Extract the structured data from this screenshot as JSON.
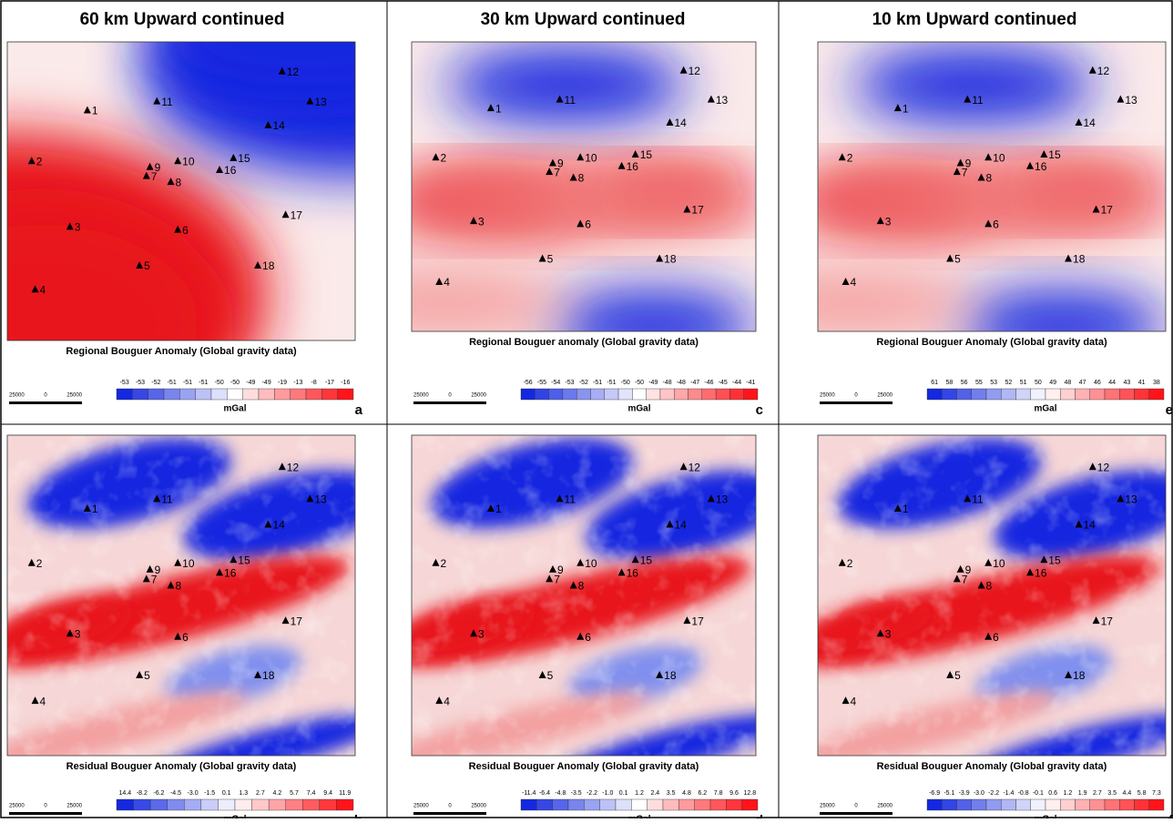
{
  "titles": [
    "60 km Upward continued",
    "30 km Upward continued",
    "10 km Upward continued"
  ],
  "stations": [
    "1",
    "2",
    "3",
    "4",
    "5",
    "6",
    "7",
    "8",
    "9",
    "10",
    "11",
    "12",
    "13",
    "14",
    "15",
    "16",
    "17",
    "18"
  ],
  "panels": [
    {
      "letter": "a",
      "caption": "Regional Bouguer Anomaly (Global gravity data)",
      "unit": "mGal",
      "scale": [
        "25000",
        "0",
        "25000"
      ],
      "colorbar": [
        "-53",
        "-53",
        "-52",
        "-51",
        "-51",
        "-51",
        "-50",
        "-50",
        "-49",
        "-49",
        "-19",
        "-13",
        "-8",
        "-17",
        "-16"
      ]
    },
    {
      "letter": "b",
      "caption": "Residual Bouguer Anomaly (Global gravity data)",
      "unit": "mGal",
      "scale": [
        "25000",
        "0",
        "25000"
      ],
      "colorbar": [
        "14.4",
        "-8.2",
        "-6.2",
        "-4.5",
        "-3.0",
        "-1.5",
        "0.1",
        "1.3",
        "2.7",
        "4.2",
        "5.7",
        "7.4",
        "9.4",
        "11.9"
      ]
    },
    {
      "letter": "c",
      "caption": "Regional Bouguer anomaly (Global gravity data)",
      "unit": "mGal",
      "scale": [
        "25000",
        "0",
        "25000"
      ],
      "colorbar": [
        "-56",
        "-55",
        "-54",
        "-53",
        "-52",
        "-51",
        "-51",
        "-50",
        "-50",
        "-49",
        "-48",
        "-48",
        "-47",
        "-46",
        "-45",
        "-44",
        "-41"
      ]
    },
    {
      "letter": "d",
      "caption": "Residual Bouguer Anomaly (Global gravity data)",
      "unit": "mGal",
      "scale": [
        "25000",
        "0",
        "25000"
      ],
      "colorbar": [
        "-11.4",
        "-6.4",
        "-4.8",
        "-3.5",
        "-2.2",
        "-1.0",
        "0.1",
        "1.2",
        "2.4",
        "3.5",
        "4.8",
        "6.2",
        "7.8",
        "9.6",
        "12.8"
      ]
    },
    {
      "letter": "e",
      "caption": "Regional Bouguer Anomaly (Global gravity data)",
      "unit": "mGal",
      "scale": [
        "25000",
        "0",
        "25000"
      ],
      "colorbar": [
        "61",
        "58",
        "56",
        "55",
        "53",
        "52",
        "51",
        "50",
        "49",
        "48",
        "47",
        "46",
        "44",
        "43",
        "41",
        "38"
      ]
    },
    {
      "letter": "f",
      "caption": "Residual Bouguer Anomaly (Global gravity data)",
      "unit": "mGal",
      "scale": [
        "25000",
        "0",
        "25000"
      ],
      "colorbar": [
        "-6.9",
        "-5.1",
        "-3.9",
        "-3.0",
        "-2.2",
        "-1.4",
        "-0.8",
        "-0.1",
        "0.6",
        "1.2",
        "1.9",
        "2.7",
        "3.5",
        "4.4",
        "5.8",
        "7.3"
      ]
    }
  ]
}
